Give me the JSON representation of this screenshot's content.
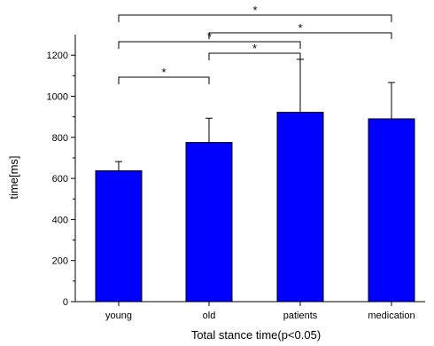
{
  "chart_data": {
    "type": "bar",
    "title": "",
    "xlabel": "Total stance time(p<0.05)",
    "ylabel": "time[ms]",
    "categories": [
      "young",
      "old",
      "patients",
      "medication"
    ],
    "values": [
      637,
      775,
      922,
      890
    ],
    "error_plus": [
      45,
      118,
      258,
      177
    ],
    "ylim": [
      0,
      1300
    ],
    "yticks": [
      0,
      200,
      400,
      600,
      800,
      1000,
      1200
    ],
    "ytick_labels": [
      "0",
      "200",
      "400",
      "600",
      "800",
      "1000",
      "1200"
    ],
    "bar_color": "#0000FF",
    "grid": false,
    "legend": "none",
    "significance": [
      {
        "from": 0,
        "to": 1,
        "label": "*"
      },
      {
        "from": 1,
        "to": 2,
        "label": "*"
      },
      {
        "from": 1,
        "to": 3,
        "label": "*"
      },
      {
        "from": 0,
        "to": 2,
        "label": "*"
      },
      {
        "from": 0,
        "to": 3,
        "label": "*"
      }
    ]
  }
}
